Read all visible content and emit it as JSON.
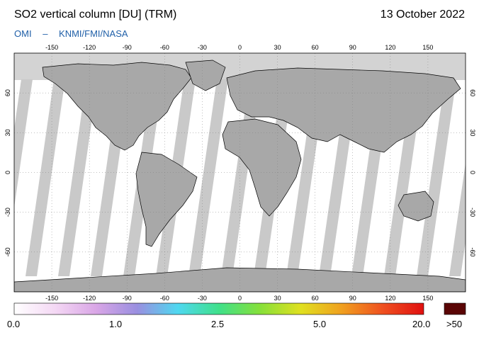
{
  "header": {
    "title": "SO2 vertical column [DU] (TRM)",
    "date": "13 October 2022",
    "credit_instrument": "OMI",
    "credit_separator": "–",
    "credit_agencies": "KNMI/FMI/NASA"
  },
  "map": {
    "lon_ticks": [
      "-150",
      "-120",
      "-90",
      "-60",
      "-30",
      "0",
      "30",
      "60",
      "90",
      "120",
      "150"
    ],
    "lat_ticks": [
      "60",
      "30",
      "0",
      "-30",
      "-60"
    ],
    "colors": {
      "no_data": "#d3d3d3",
      "land_shade": "#a8a8a8",
      "swath_gap": "#c9c9c9",
      "background": "#ffffff",
      "coastline": "#000000"
    }
  },
  "colorbar": {
    "labels": [
      "0.0",
      "1.0",
      "2.5",
      "5.0",
      "20.0",
      ">50"
    ],
    "colors": [
      "#ffffff",
      "#f4d8f4",
      "#d9a6e6",
      "#9a8fe0",
      "#4fd8f0",
      "#3fe08a",
      "#86e03a",
      "#e0e020",
      "#f0a020",
      "#ef5020",
      "#e01010"
    ],
    "overflow_color": "#5a0505"
  }
}
